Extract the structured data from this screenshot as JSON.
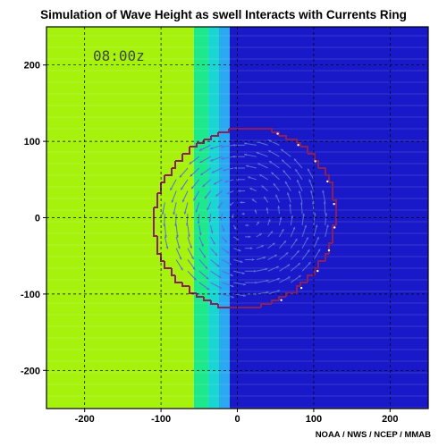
{
  "chart_data": {
    "type": "heatmap",
    "title": "Simulation of Wave Height as swell Interacts with Currents Ring",
    "timestamp": "08:00z",
    "credit": "NOAA / NWS / NCEP / MMAB",
    "xlim": [
      -250,
      250
    ],
    "ylim": [
      -250,
      250
    ],
    "x_ticks": [
      -200,
      -100,
      0,
      100,
      200
    ],
    "y_ticks": [
      -200,
      -100,
      0,
      100,
      200
    ],
    "grid": true,
    "bands": [
      {
        "x0": -250,
        "x1": -57,
        "color": "#a6f20d"
      },
      {
        "x0": -57,
        "x1": -38,
        "color": "#1de88c"
      },
      {
        "x0": -38,
        "x1": -24,
        "color": "#1ad6d2"
      },
      {
        "x0": -24,
        "x1": -10,
        "color": "#2aa8f0"
      },
      {
        "x0": -10,
        "x1": 250,
        "color": "#1919c9"
      }
    ],
    "ring": {
      "center": [
        10,
        0
      ],
      "radius": 118,
      "color": "#8a1f5a"
    }
  },
  "colors": {
    "frame": "#000000",
    "grid": "#000000",
    "arrow": "#5a6fd8",
    "timestamp": "#3b4a3b"
  }
}
